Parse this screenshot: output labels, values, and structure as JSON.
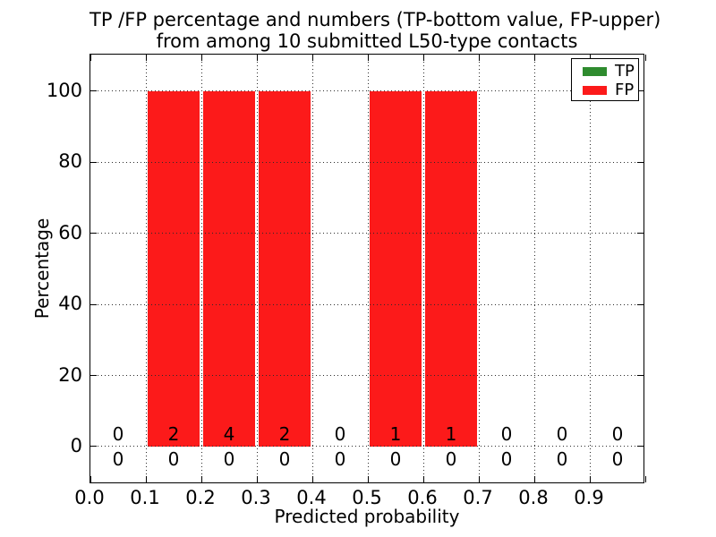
{
  "title": {
    "line1": "TP /FP percentage and numbers (TP-bottom value, FP-upper)",
    "line2": "from among 10 submitted L50-type contacts"
  },
  "axes": {
    "xlabel": "Predicted probability",
    "ylabel": "Percentage",
    "xlim": [
      0.0,
      1.0
    ],
    "ylim": [
      -10.6,
      110.3
    ],
    "grid_style": "dotted",
    "x_ticks": [
      {
        "value": 0.0,
        "label": "0.0"
      },
      {
        "value": 0.1,
        "label": "0.1"
      },
      {
        "value": 0.2,
        "label": "0.2"
      },
      {
        "value": 0.3,
        "label": "0.3"
      },
      {
        "value": 0.4,
        "label": "0.4"
      },
      {
        "value": 0.5,
        "label": "0.5"
      },
      {
        "value": 0.6,
        "label": "0.6"
      },
      {
        "value": 0.7,
        "label": "0.7"
      },
      {
        "value": 0.8,
        "label": "0.8"
      },
      {
        "value": 0.9,
        "label": "0.9"
      },
      {
        "value": 1.0,
        "label": ""
      }
    ],
    "y_ticks": [
      {
        "value": 0,
        "label": "0"
      },
      {
        "value": 20,
        "label": "20"
      },
      {
        "value": 40,
        "label": "40"
      },
      {
        "value": 60,
        "label": "60"
      },
      {
        "value": 80,
        "label": "80"
      },
      {
        "value": 100,
        "label": "100"
      }
    ]
  },
  "legend": {
    "position": "upper-right",
    "items": [
      {
        "label": "TP",
        "color": "#2e8b2e"
      },
      {
        "label": "FP",
        "color": "#fc1a1a"
      }
    ]
  },
  "chart_data": {
    "type": "bar",
    "stacked": true,
    "title": "TP /FP percentage and numbers (TP-bottom value, FP-upper) from among 10 submitted L50-type contacts",
    "xlabel": "Predicted probability",
    "ylabel": "Percentage",
    "total_submitted_contacts": 10,
    "contact_type": "L50",
    "bin_width": 0.1,
    "bin_edges": [
      0.0,
      0.1,
      0.2,
      0.3,
      0.4,
      0.5,
      0.6,
      0.7,
      0.8,
      0.9,
      1.0
    ],
    "bin_centers": [
      0.05,
      0.15,
      0.25,
      0.35,
      0.45,
      0.55,
      0.65,
      0.75,
      0.85,
      0.95
    ],
    "series": [
      {
        "name": "TP",
        "color": "#2e8b2e",
        "count_row": "bottom",
        "percent": [
          0,
          0,
          0,
          0,
          0,
          0,
          0,
          0,
          0,
          0
        ],
        "counts": [
          0,
          0,
          0,
          0,
          0,
          0,
          0,
          0,
          0,
          0
        ]
      },
      {
        "name": "FP",
        "color": "#fc1a1a",
        "count_row": "top",
        "percent": [
          0,
          100,
          100,
          100,
          0,
          100,
          100,
          0,
          0,
          0
        ],
        "counts": [
          0,
          2,
          4,
          2,
          0,
          1,
          1,
          0,
          0,
          0
        ]
      }
    ],
    "xlim": [
      0.0,
      1.0
    ],
    "ylim": [
      -10.6,
      110.3
    ],
    "grid": true,
    "legend_position": "upper-right"
  },
  "colors": {
    "background": "#ffffff",
    "spine": "#000000",
    "grid": "#2b2b2b",
    "text": "#000000",
    "tp": "#2e8b2e",
    "fp": "#fc1a1a"
  }
}
